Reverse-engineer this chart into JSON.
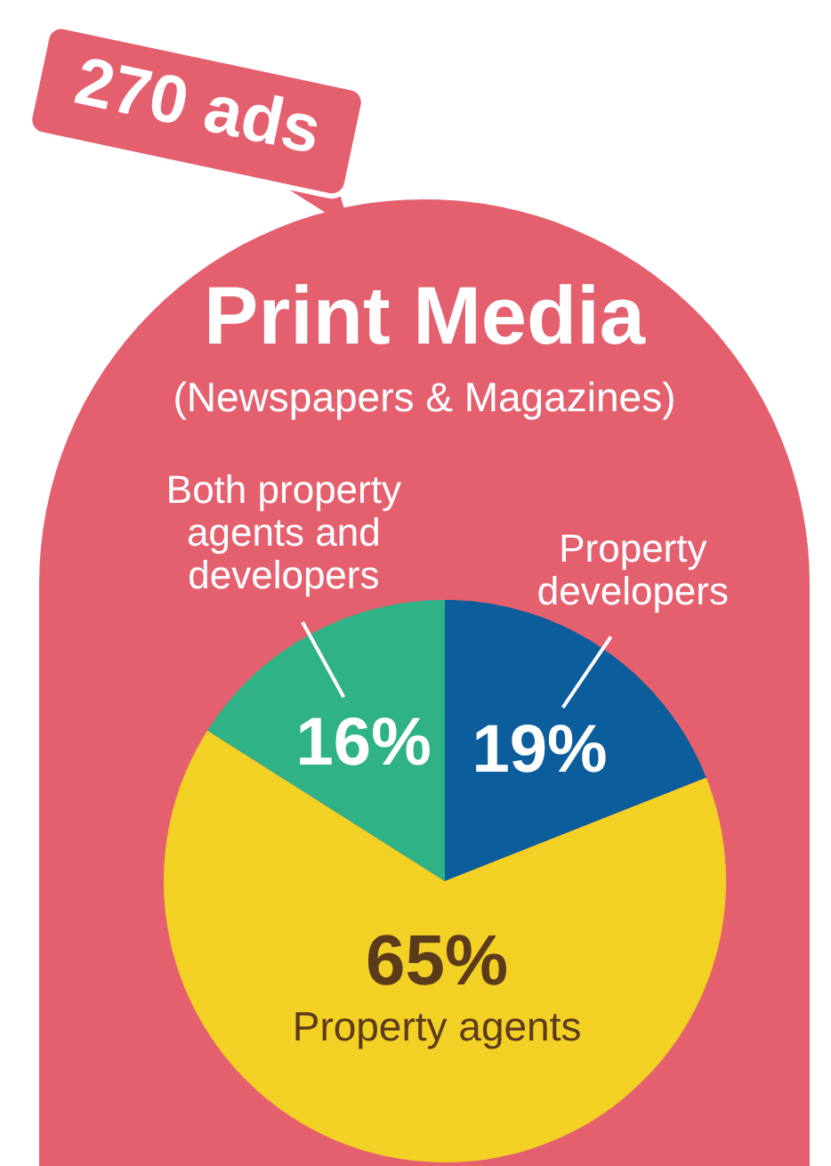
{
  "chart_data": {
    "type": "pie",
    "title": "Print Media",
    "subtitle": "(Newspapers & Magazines)",
    "annotations": [
      "270 ads"
    ],
    "categories": [
      "Property developers",
      "Property agents",
      "Both property agents and developers"
    ],
    "values": [
      19,
      65,
      16
    ],
    "colors": [
      "#0b5e9b",
      "#f2d024",
      "#2fb286"
    ],
    "value_labels": [
      "19%",
      "65%",
      "16%"
    ],
    "legend": false
  }
}
